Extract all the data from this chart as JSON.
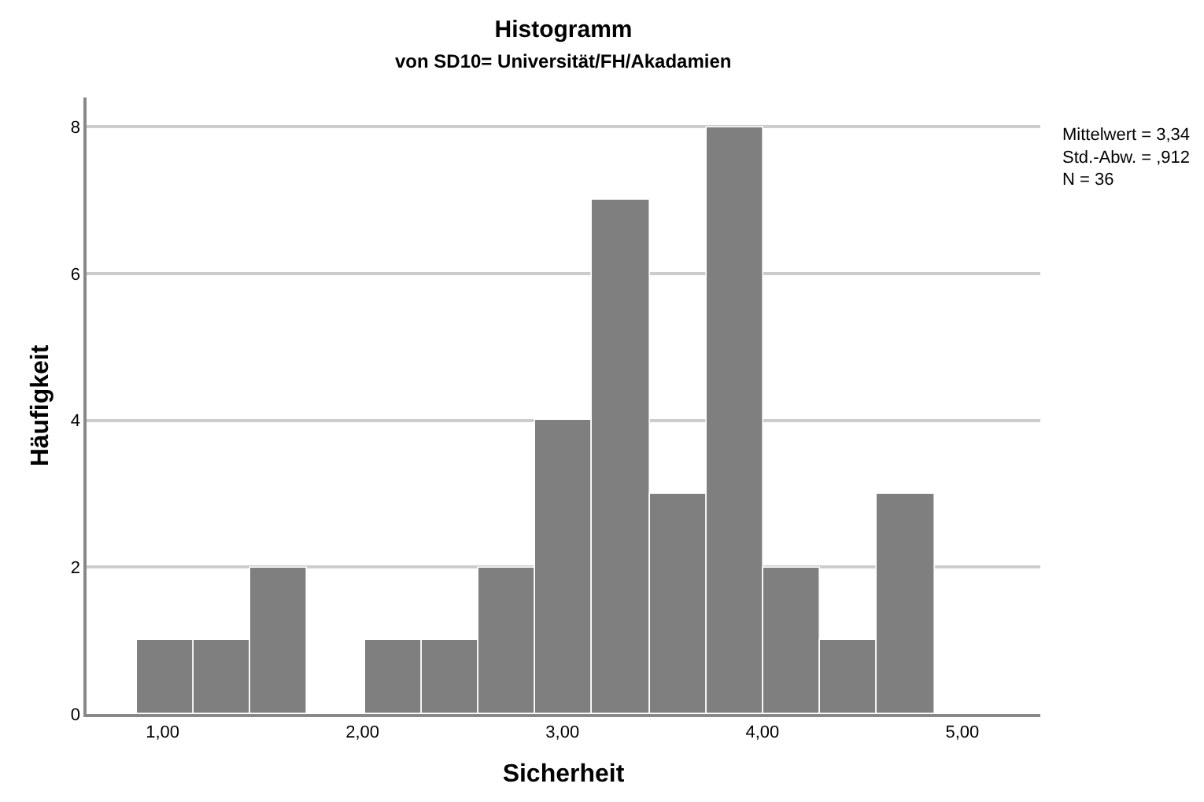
{
  "chart_data": {
    "type": "histogram",
    "title": "Histogramm",
    "subtitle": "von SD10= Universität/FH/Akadamien",
    "xlabel": "Sicherheit",
    "ylabel": "Häufigkeit",
    "bins": [
      0.87,
      1.155,
      1.44,
      1.725,
      2.01,
      2.295,
      2.58,
      2.865,
      3.15,
      3.435,
      3.72,
      4.005,
      4.29,
      4.575,
      4.86
    ],
    "values": [
      1,
      1,
      2,
      0,
      1,
      1,
      2,
      4,
      7,
      3,
      8,
      2,
      1,
      3
    ],
    "color": "#7f7f7f",
    "xlim": [
      0.62,
      5.39
    ],
    "xticks": [
      {
        "value": 1,
        "label": "1,00"
      },
      {
        "value": 2,
        "label": "2,00"
      },
      {
        "value": 3,
        "label": "3,00"
      },
      {
        "value": 4,
        "label": "4,00"
      },
      {
        "value": 5,
        "label": "5,00"
      }
    ],
    "ylim": [
      0,
      8.4
    ],
    "yticks": [
      0,
      2,
      4,
      6,
      8
    ],
    "grid": "y",
    "annotations": [
      "Mittelwert = 3,34\nStd.-Abw. = ,912\nN = 36"
    ]
  }
}
